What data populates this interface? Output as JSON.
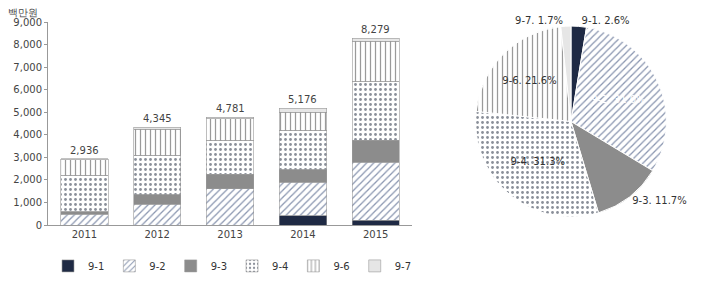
{
  "chart_data": [
    {
      "type": "bar",
      "stacked": true,
      "ylabel": "백만원",
      "categories": [
        "2011",
        "2012",
        "2013",
        "2014",
        "2015"
      ],
      "series": [
        {
          "name": "9-1",
          "color": "#1f2a44",
          "values": [
            0,
            0,
            0,
            400,
            215
          ]
        },
        {
          "name": "9-2",
          "color": "#3b4a6b",
          "values": [
            480,
            930,
            1600,
            1500,
            2566
          ]
        },
        {
          "name": "9-3",
          "color": "#8c8c8c",
          "values": [
            100,
            420,
            650,
            550,
            969
          ]
        },
        {
          "name": "9-4",
          "color": "#c9cdd4",
          "values": [
            1620,
            1750,
            1500,
            1750,
            2591
          ]
        },
        {
          "name": "9-6",
          "color": "#ffffff",
          "values": [
            700,
            1150,
            950,
            800,
            1797
          ]
        },
        {
          "name": "9-7",
          "color": "#e6e6e6",
          "values": [
            36,
            95,
            81,
            176,
            141
          ]
        }
      ],
      "totals": [
        2936,
        4345,
        4781,
        5176,
        8279
      ],
      "total_labels": [
        "2,936",
        "4,345",
        "4,781",
        "5,176",
        "8,279"
      ],
      "ylim": [
        0,
        9000
      ],
      "yticks": [
        0,
        {
          "value": 1000,
          "label": "1,000"
        },
        {
          "value": 2000,
          "label": "2,000"
        },
        {
          "value": 3000,
          "label": "3,000"
        },
        {
          "value": 4000,
          "label": "4,000"
        },
        {
          "value": 5000,
          "label": "5,000"
        },
        {
          "value": 6000,
          "label": "6,000"
        },
        {
          "value": 7000,
          "label": "7,000"
        },
        {
          "value": 8000,
          "label": "8,000"
        },
        {
          "value": 9000,
          "label": "9,000"
        }
      ],
      "grid": false,
      "legend": "bottom"
    },
    {
      "type": "pie",
      "categories": [
        "9-1",
        "9-2",
        "9-3",
        "9-4",
        "9-6",
        "9-7"
      ],
      "values": [
        2.6,
        31.0,
        11.7,
        31.3,
        21.6,
        1.7
      ],
      "value_labels": [
        "9-1. 2.6%",
        "9-2. 31.0%",
        "9-3. 11.7%",
        "9-4. 31.3%",
        "9-6. 21.6%",
        "9-7. 1.7%"
      ],
      "colors": [
        "#1f2a44",
        "#3b4a6b",
        "#8c8c8c",
        "#c9cdd4",
        "#ffffff",
        "#e6e6e6"
      ],
      "data_labels": true
    }
  ]
}
